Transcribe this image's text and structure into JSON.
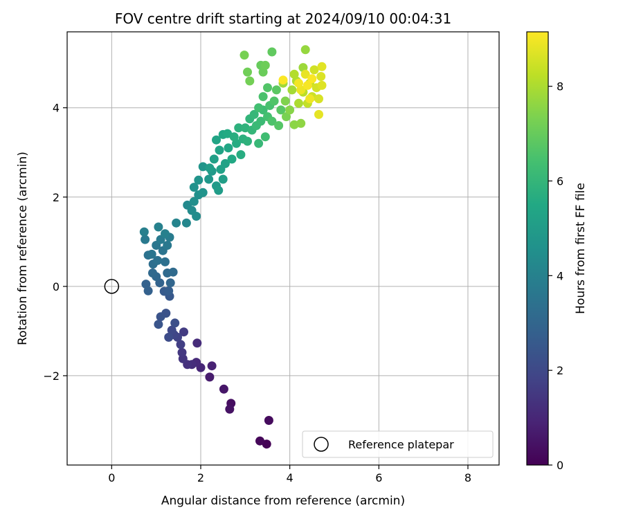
{
  "chart_data": {
    "type": "scatter",
    "title": "FOV centre drift starting at 2024/09/10 00:04:31",
    "xlabel": "Angular distance from reference (arcmin)",
    "ylabel": "Rotation from reference (arcmin)",
    "xlim": [
      -1.0,
      8.7
    ],
    "ylim": [
      -4.0,
      5.7
    ],
    "xticks": [
      0,
      2,
      4,
      6,
      8
    ],
    "yticks": [
      -2,
      0,
      2,
      4
    ],
    "xtick_labels": [
      "0",
      "2",
      "4",
      "6",
      "8"
    ],
    "ytick_labels": [
      "−2",
      "0",
      "2",
      "4"
    ],
    "grid": true,
    "legend": {
      "placement": "lower-right",
      "entries": [
        "Reference platepar"
      ]
    },
    "reference_point": {
      "label": "Reference platepar",
      "x": 0,
      "y": 0
    },
    "colorbar": {
      "label": "Hours from first FF file",
      "colormap": "viridis",
      "range": [
        0,
        9.15
      ],
      "ticks": [
        0,
        2,
        4,
        6,
        8
      ],
      "tick_labels": [
        "0",
        "2",
        "4",
        "6",
        "8"
      ]
    },
    "points": [
      [
        3.48,
        -3.53,
        0.05
      ],
      [
        3.33,
        -3.46,
        0.15
      ],
      [
        3.53,
        -3.0,
        0.25
      ],
      [
        2.68,
        -2.62,
        0.35
      ],
      [
        2.65,
        -2.75,
        0.45
      ],
      [
        2.52,
        -2.3,
        0.55
      ],
      [
        2.2,
        -2.03,
        0.7
      ],
      [
        2.25,
        -1.78,
        0.85
      ],
      [
        2.0,
        -1.82,
        1.0
      ],
      [
        1.9,
        -1.7,
        1.1
      ],
      [
        1.92,
        -1.27,
        1.15
      ],
      [
        1.8,
        -1.75,
        1.2
      ],
      [
        1.7,
        -1.75,
        1.3
      ],
      [
        1.6,
        -1.62,
        1.4
      ],
      [
        1.58,
        -1.48,
        1.5
      ],
      [
        1.62,
        -1.02,
        1.6
      ],
      [
        1.55,
        -1.3,
        1.7
      ],
      [
        1.48,
        -1.14,
        1.8
      ],
      [
        1.4,
        -1.08,
        1.9
      ],
      [
        1.35,
        -0.98,
        2.0
      ],
      [
        1.28,
        -1.14,
        2.1
      ],
      [
        1.42,
        -0.82,
        2.2
      ],
      [
        1.22,
        -0.6,
        2.3
      ],
      [
        1.1,
        -0.68,
        2.35
      ],
      [
        1.05,
        -0.85,
        2.4
      ],
      [
        1.3,
        -0.22,
        2.5
      ],
      [
        1.18,
        -0.11,
        2.6
      ],
      [
        1.28,
        -0.1,
        2.7
      ],
      [
        0.82,
        -0.1,
        2.8
      ],
      [
        0.77,
        0.05,
        2.85
      ],
      [
        1.08,
        0.08,
        2.9
      ],
      [
        1.32,
        0.08,
        3.0
      ],
      [
        1.0,
        0.22,
        3.05
      ],
      [
        0.92,
        0.3,
        3.1
      ],
      [
        1.25,
        0.3,
        3.15
      ],
      [
        1.38,
        0.32,
        3.2
      ],
      [
        0.93,
        0.5,
        3.3
      ],
      [
        1.2,
        0.55,
        3.35
      ],
      [
        1.03,
        0.58,
        3.4
      ],
      [
        0.82,
        0.7,
        3.45
      ],
      [
        1.15,
        0.8,
        3.5
      ],
      [
        0.9,
        0.72,
        3.55
      ],
      [
        1.0,
        0.92,
        3.6
      ],
      [
        1.25,
        0.92,
        3.65
      ],
      [
        0.75,
        1.05,
        3.7
      ],
      [
        1.1,
        1.05,
        3.75
      ],
      [
        1.3,
        1.1,
        3.8
      ],
      [
        0.73,
        1.22,
        3.9
      ],
      [
        1.2,
        1.18,
        3.95
      ],
      [
        1.05,
        1.33,
        4.0
      ],
      [
        1.45,
        1.42,
        4.1
      ],
      [
        1.68,
        1.42,
        4.2
      ],
      [
        1.7,
        1.82,
        4.3
      ],
      [
        1.8,
        1.7,
        4.35
      ],
      [
        1.9,
        1.57,
        4.4
      ],
      [
        1.85,
        1.9,
        4.5
      ],
      [
        1.95,
        2.05,
        4.55
      ],
      [
        1.85,
        2.22,
        4.6
      ],
      [
        2.05,
        2.1,
        4.65
      ],
      [
        1.95,
        2.38,
        4.7
      ],
      [
        2.05,
        2.68,
        4.75
      ],
      [
        2.18,
        2.4,
        4.8
      ],
      [
        2.25,
        2.58,
        4.9
      ],
      [
        2.35,
        2.25,
        4.95
      ],
      [
        2.4,
        2.15,
        5.0
      ],
      [
        2.2,
        2.65,
        5.05
      ],
      [
        2.5,
        2.4,
        5.1
      ],
      [
        2.3,
        2.85,
        5.15
      ],
      [
        2.45,
        2.62,
        5.2
      ],
      [
        2.55,
        2.75,
        5.25
      ],
      [
        2.42,
        3.05,
        5.3
      ],
      [
        2.35,
        3.28,
        5.35
      ],
      [
        2.62,
        3.1,
        5.4
      ],
      [
        2.5,
        3.4,
        5.45
      ],
      [
        2.7,
        2.85,
        5.5
      ],
      [
        2.6,
        3.42,
        5.55
      ],
      [
        2.8,
        3.2,
        5.6
      ],
      [
        2.9,
        2.95,
        5.65
      ],
      [
        2.75,
        3.35,
        5.7
      ],
      [
        2.95,
        3.3,
        5.75
      ],
      [
        2.85,
        3.55,
        5.8
      ],
      [
        3.05,
        3.25,
        5.85
      ],
      [
        3.0,
        3.55,
        5.9
      ],
      [
        3.1,
        3.75,
        5.95
      ],
      [
        3.15,
        3.5,
        6.0
      ],
      [
        3.2,
        3.85,
        6.05
      ],
      [
        3.3,
        3.2,
        6.1
      ],
      [
        3.25,
        3.6,
        6.15
      ],
      [
        3.35,
        3.7,
        6.2
      ],
      [
        3.4,
        3.95,
        6.25
      ],
      [
        3.45,
        3.35,
        6.3
      ],
      [
        3.3,
        4.0,
        6.35
      ],
      [
        3.5,
        3.8,
        6.4
      ],
      [
        3.55,
        4.05,
        6.45
      ],
      [
        3.4,
        4.25,
        6.5
      ],
      [
        3.6,
        3.7,
        6.55
      ],
      [
        3.65,
        4.15,
        6.6
      ],
      [
        3.5,
        4.45,
        6.65
      ],
      [
        3.75,
        3.6,
        6.7
      ],
      [
        3.8,
        3.95,
        6.75
      ],
      [
        3.7,
        4.4,
        6.8
      ],
      [
        3.6,
        5.25,
        6.9
      ],
      [
        3.35,
        4.95,
        7.0
      ],
      [
        3.4,
        4.8,
        7.05
      ],
      [
        3.45,
        4.95,
        7.1
      ],
      [
        3.05,
        4.8,
        7.15
      ],
      [
        3.1,
        4.6,
        7.2
      ],
      [
        2.98,
        5.18,
        7.25
      ],
      [
        3.92,
        3.8,
        7.3
      ],
      [
        3.9,
        4.15,
        7.4
      ],
      [
        4.0,
        3.95,
        7.5
      ],
      [
        4.1,
        3.62,
        7.55
      ],
      [
        4.25,
        3.65,
        7.6
      ],
      [
        4.35,
        5.3,
        7.7
      ],
      [
        4.3,
        4.9,
        7.8
      ],
      [
        3.85,
        4.55,
        7.85
      ],
      [
        4.05,
        4.4,
        7.9
      ],
      [
        4.2,
        4.1,
        8.0
      ],
      [
        4.15,
        4.6,
        8.05
      ],
      [
        4.1,
        4.75,
        8.1
      ],
      [
        4.3,
        4.35,
        8.2
      ],
      [
        4.4,
        4.1,
        8.3
      ],
      [
        4.45,
        4.55,
        8.4
      ],
      [
        4.5,
        4.25,
        8.45
      ],
      [
        4.55,
        4.85,
        8.5
      ],
      [
        4.6,
        4.45,
        8.55
      ],
      [
        4.65,
        4.2,
        8.6
      ],
      [
        4.7,
        4.7,
        8.65
      ],
      [
        4.72,
        4.5,
        8.7
      ],
      [
        4.72,
        4.92,
        8.75
      ],
      [
        4.65,
        3.85,
        8.8
      ],
      [
        4.35,
        4.75,
        8.85
      ],
      [
        4.25,
        4.4,
        8.9
      ],
      [
        4.45,
        4.2,
        8.95
      ],
      [
        4.2,
        4.55,
        9.0
      ],
      [
        4.4,
        4.5,
        9.05
      ],
      [
        4.5,
        4.65,
        9.1
      ],
      [
        3.85,
        4.62,
        9.12
      ]
    ]
  }
}
